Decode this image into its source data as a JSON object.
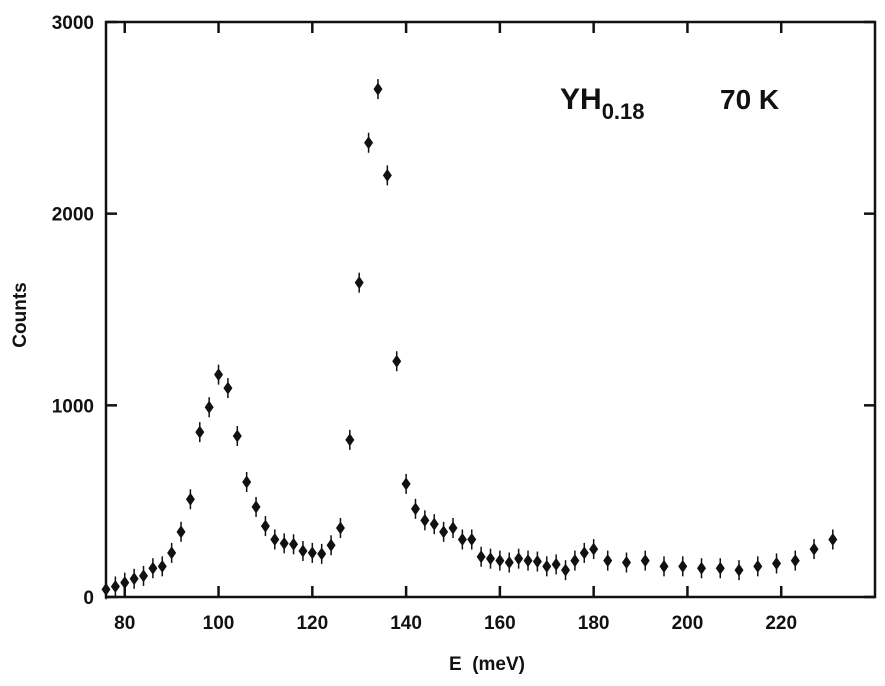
{
  "chart_data": {
    "type": "scatter",
    "title": "",
    "xlabel": "E  (meV)",
    "ylabel": "Counts",
    "xlim": [
      76,
      240
    ],
    "ylim": [
      0,
      3000
    ],
    "xticks": [
      80,
      100,
      120,
      140,
      160,
      180,
      200,
      220
    ],
    "xtick_labels": [
      "80",
      "100",
      "120",
      "140",
      "160",
      "180",
      "200",
      "220"
    ],
    "yticks": [
      0,
      1000,
      2000,
      3000
    ],
    "ytick_labels": [
      "0",
      "1000",
      "2000",
      "3000"
    ],
    "grid": false,
    "annotations": [
      {
        "main": "YH",
        "sub": "0.18"
      },
      {
        "main": "70 K",
        "sub": ""
      }
    ],
    "series": [
      {
        "marker": "diamond",
        "color": "#111111",
        "points": [
          [
            76,
            40
          ],
          [
            78,
            55
          ],
          [
            80,
            75
          ],
          [
            82,
            95
          ],
          [
            84,
            110
          ],
          [
            86,
            150
          ],
          [
            88,
            160
          ],
          [
            90,
            230
          ],
          [
            92,
            340
          ],
          [
            94,
            510
          ],
          [
            96,
            860
          ],
          [
            98,
            990
          ],
          [
            100,
            1160
          ],
          [
            102,
            1090
          ],
          [
            104,
            840
          ],
          [
            106,
            600
          ],
          [
            108,
            470
          ],
          [
            110,
            370
          ],
          [
            112,
            300
          ],
          [
            114,
            280
          ],
          [
            116,
            275
          ],
          [
            118,
            240
          ],
          [
            120,
            230
          ],
          [
            122,
            225
          ],
          [
            124,
            270
          ],
          [
            126,
            360
          ],
          [
            128,
            820
          ],
          [
            130,
            1640
          ],
          [
            132,
            2370
          ],
          [
            134,
            2650
          ],
          [
            136,
            2200
          ],
          [
            138,
            1230
          ],
          [
            140,
            590
          ],
          [
            142,
            460
          ],
          [
            144,
            400
          ],
          [
            146,
            380
          ],
          [
            148,
            340
          ],
          [
            150,
            360
          ],
          [
            152,
            300
          ],
          [
            154,
            300
          ],
          [
            156,
            210
          ],
          [
            158,
            200
          ],
          [
            160,
            190
          ],
          [
            162,
            180
          ],
          [
            164,
            200
          ],
          [
            166,
            190
          ],
          [
            168,
            185
          ],
          [
            170,
            160
          ],
          [
            172,
            170
          ],
          [
            174,
            140
          ],
          [
            176,
            190
          ],
          [
            178,
            230
          ],
          [
            180,
            250
          ],
          [
            183,
            190
          ],
          [
            187,
            180
          ],
          [
            191,
            190
          ],
          [
            195,
            160
          ],
          [
            199,
            160
          ],
          [
            203,
            150
          ],
          [
            207,
            150
          ],
          [
            211,
            140
          ],
          [
            215,
            160
          ],
          [
            219,
            175
          ],
          [
            223,
            190
          ],
          [
            227,
            250
          ],
          [
            231,
            300
          ]
        ]
      }
    ]
  }
}
